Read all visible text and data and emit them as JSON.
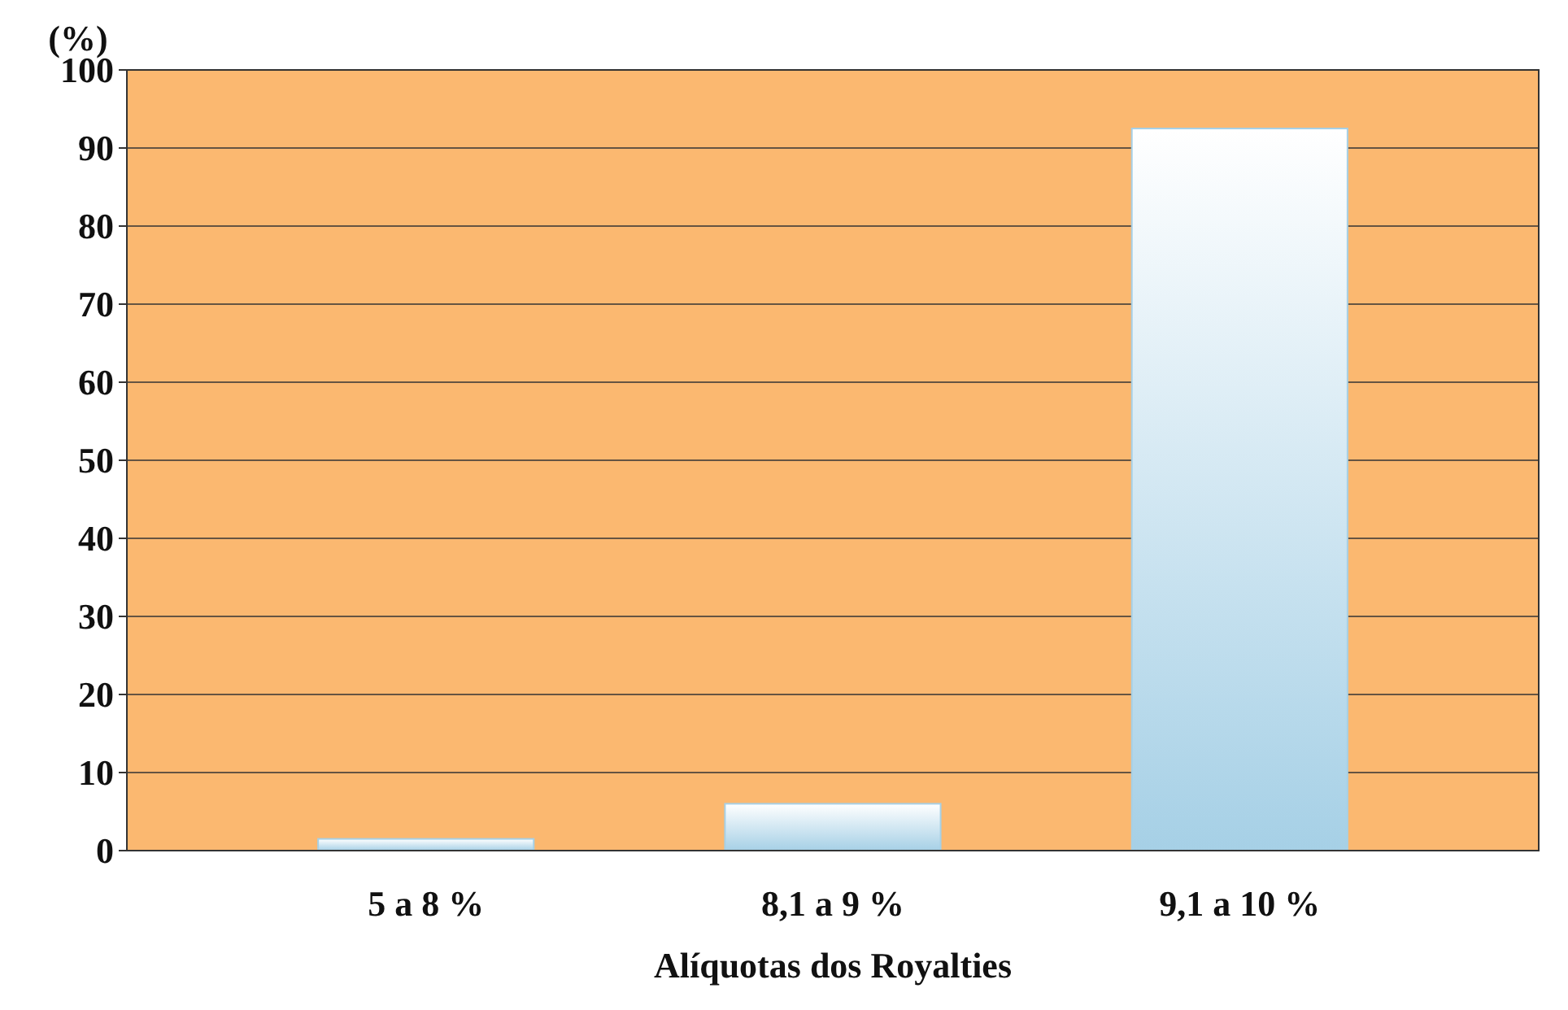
{
  "chart_data": {
    "type": "bar",
    "ylabel": "(%)",
    "xlabel": "Alíquotas dos Royalties",
    "categories": [
      "5 a 8 %",
      "8,1 a 9 %",
      "9,1 a 10 %"
    ],
    "values": [
      1.5,
      6,
      92.5
    ],
    "color": "#a6d0e6",
    "ylim": [
      0,
      100
    ],
    "yticks": [
      0,
      10,
      20,
      30,
      40,
      50,
      60,
      70,
      80,
      90,
      100
    ],
    "grid": "y"
  }
}
